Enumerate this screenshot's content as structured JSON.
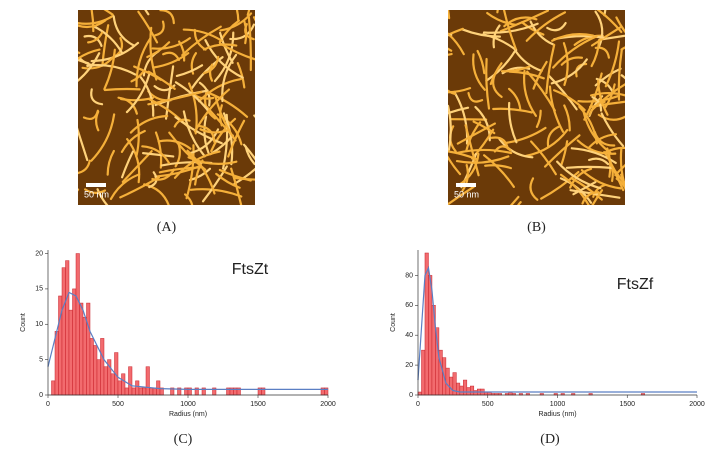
{
  "images": [
    {
      "label": "(A)",
      "scale_bar": "50 nm"
    },
    {
      "label": "(B)",
      "scale_bar": "50 nm"
    }
  ],
  "chart_data": [
    {
      "type": "histogram",
      "title": "FtsZt",
      "x_label": "Radius (nm)",
      "y_label": "Count",
      "caption": "(C)",
      "color": "#f26b6e",
      "edge_color": "#c8222a",
      "bins": [
        0,
        25,
        50,
        75,
        100,
        125,
        150,
        175,
        200,
        225,
        250,
        275,
        300,
        325,
        350,
        375,
        400,
        425,
        450,
        475,
        500,
        525,
        550,
        575,
        600,
        625,
        650,
        675,
        700,
        725,
        750,
        775,
        800,
        825,
        850,
        875,
        900,
        925,
        950,
        975,
        1000,
        1025,
        1050,
        1075,
        1100,
        1125,
        1150,
        1175,
        1200,
        1225,
        1250,
        1275,
        1300,
        1325,
        1350,
        1375,
        1400,
        1425,
        1450,
        1475,
        1500,
        1525,
        1550,
        1575,
        1600,
        1625,
        1650,
        1675,
        1700,
        1725,
        1750,
        1775,
        1800,
        1825,
        1850,
        1875,
        1900,
        1925,
        1950,
        1975,
        2000
      ],
      "values": [
        0,
        2,
        9,
        14,
        18,
        19,
        12,
        15,
        20,
        13,
        11,
        13,
        8,
        7,
        5,
        8,
        4,
        5,
        3,
        6,
        2,
        3,
        1,
        4,
        1,
        2,
        1,
        1,
        4,
        1,
        1,
        2,
        1,
        0,
        0,
        1,
        0,
        1,
        0,
        1,
        1,
        0,
        1,
        0,
        1,
        0,
        0,
        1,
        0,
        0,
        0,
        1,
        1,
        1,
        1,
        0,
        0,
        0,
        0,
        0,
        1,
        1,
        0,
        0,
        0,
        0,
        0,
        0,
        0,
        0,
        0,
        0,
        0,
        0,
        0,
        0,
        0,
        0,
        1,
        1
      ],
      "fit": {
        "color": "#5a7fc4",
        "x": [
          0,
          50,
          100,
          150,
          200,
          250,
          300,
          400,
          500,
          600,
          800,
          1000,
          1500,
          2000
        ],
        "values": [
          4,
          8,
          12,
          14.5,
          14,
          12,
          9,
          5,
          2.5,
          1.3,
          0.9,
          0.8,
          0.8,
          0.8
        ]
      },
      "xlim": [
        0,
        2000
      ],
      "xticks": [
        0,
        500,
        1000,
        1500,
        2000
      ],
      "ylim": [
        0,
        20.5
      ],
      "yticks": [
        0,
        5,
        10,
        15,
        20
      ]
    },
    {
      "type": "histogram",
      "title": "FtsZf",
      "x_label": "Radius (nm)",
      "y_label": "Count",
      "caption": "(D)",
      "color": "#f26b6e",
      "edge_color": "#c8222a",
      "bins": [
        0,
        25,
        50,
        75,
        100,
        125,
        150,
        175,
        200,
        225,
        250,
        275,
        300,
        325,
        350,
        375,
        400,
        425,
        450,
        475,
        500,
        525,
        550,
        575,
        600,
        625,
        650,
        675,
        700,
        725,
        750,
        775,
        800,
        825,
        850,
        875,
        900,
        925,
        950,
        975,
        1000,
        1025,
        1050,
        1075,
        1100,
        1125,
        1150,
        1175,
        1200,
        1225,
        1250,
        1275,
        1300,
        1325,
        1350,
        1375,
        1400,
        1425,
        1450,
        1475,
        1500,
        1525,
        1550,
        1575,
        1600,
        1625,
        1650,
        1675,
        1700,
        1725,
        1750,
        1775,
        1800,
        1825,
        1850,
        1875,
        1900,
        1925,
        1950,
        1975,
        2000
      ],
      "values": [
        2,
        30,
        95,
        80,
        60,
        45,
        30,
        25,
        18,
        12,
        15,
        8,
        6,
        10,
        5,
        6,
        3,
        4,
        4,
        2,
        2,
        1,
        1,
        1,
        0,
        1,
        2,
        1,
        0,
        1,
        0,
        1,
        0,
        0,
        0,
        1,
        0,
        0,
        0,
        1,
        0,
        1,
        0,
        0,
        1,
        0,
        0,
        0,
        0,
        1,
        0,
        0,
        0,
        0,
        0,
        0,
        0,
        0,
        0,
        0,
        0,
        0,
        0,
        0,
        1,
        0,
        0,
        0,
        0,
        0,
        0,
        0,
        0,
        0,
        0,
        0,
        0,
        0,
        0,
        0
      ],
      "fit": {
        "color": "#5a7fc4",
        "x": [
          0,
          25,
          50,
          75,
          100,
          125,
          150,
          200,
          250,
          300,
          400,
          600,
          1000,
          2000
        ],
        "values": [
          10,
          45,
          80,
          85,
          70,
          45,
          25,
          8,
          3,
          2,
          2,
          2,
          2,
          2
        ]
      },
      "xlim": [
        0,
        2000
      ],
      "xticks": [
        0,
        500,
        1000,
        1500,
        2000
      ],
      "ylim": [
        0,
        97
      ],
      "yticks": [
        0,
        20,
        40,
        60,
        80
      ]
    }
  ]
}
